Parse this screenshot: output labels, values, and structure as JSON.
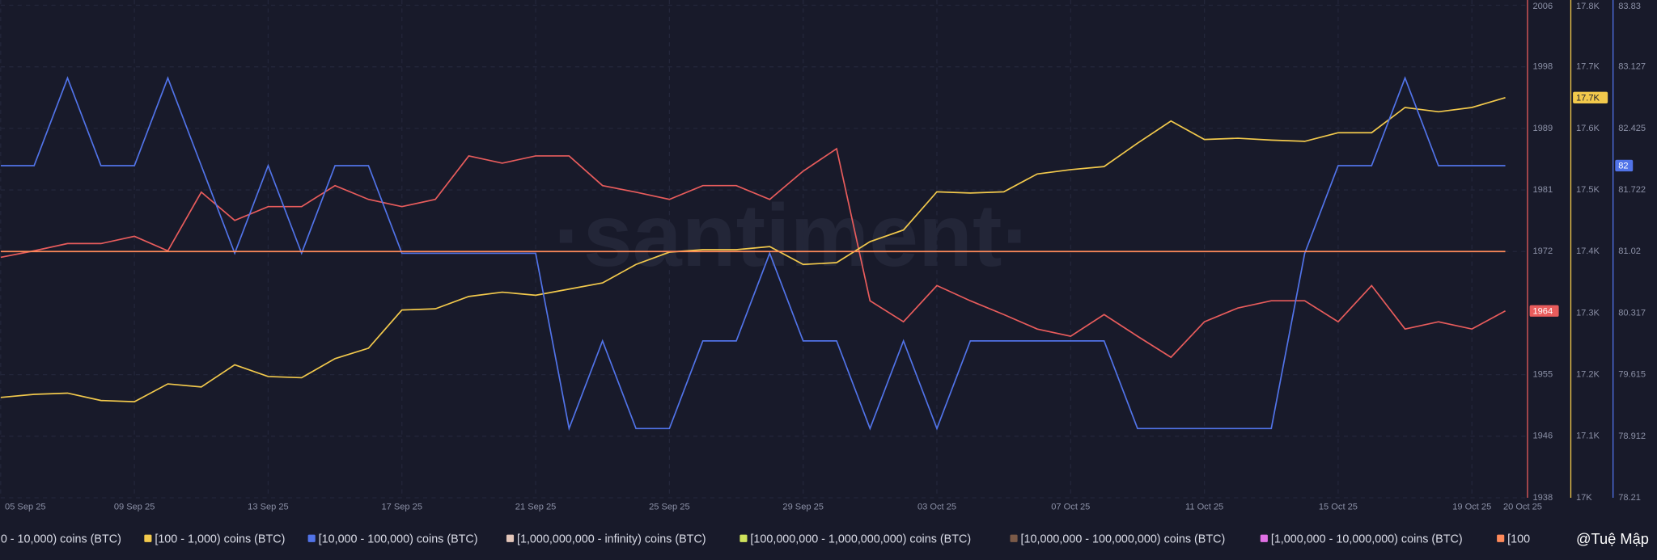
{
  "chart_data": {
    "type": "line",
    "watermark": "·santiment·",
    "credit": "@Tuệ Mập",
    "categories": [
      "05 Sep 25",
      null,
      null,
      null,
      "09 Sep 25",
      null,
      null,
      null,
      "13 Sep 25",
      null,
      null,
      null,
      "17 Sep 25",
      null,
      null,
      null,
      "21 Sep 25",
      null,
      null,
      null,
      "25 Sep 25",
      null,
      null,
      null,
      "29 Sep 25",
      null,
      null,
      null,
      "03 Oct 25",
      null,
      null,
      null,
      "07 Oct 25",
      null,
      null,
      null,
      "11 Oct 25",
      null,
      null,
      null,
      "15 Oct 25",
      null,
      null,
      null,
      "19 Oct 25",
      "20 Oct 25"
    ],
    "ylim": [
      1938,
      2006
    ],
    "yticks": [
      1938,
      {
        "value": 1946.5,
        "label": "1946"
      },
      1955,
      1972,
      {
        "value": 1980.5,
        "label": "1981"
      },
      1989,
      {
        "value": 1997.5,
        "label": "1998"
      },
      2006
    ],
    "y2lim": [
      17000,
      17800
    ],
    "y2ticks": [
      {
        "value": 17000,
        "label": "17K"
      },
      {
        "value": 17100,
        "label": "17.1K"
      },
      {
        "value": 17200,
        "label": "17.2K"
      },
      {
        "value": 17300,
        "label": "17.3K"
      },
      {
        "value": 17400,
        "label": "17.4K"
      },
      {
        "value": 17500,
        "label": "17.5K"
      },
      {
        "value": 17600,
        "label": "17.6K"
      },
      {
        "value": 17700,
        "label": "17.7K"
      },
      {
        "value": 17800,
        "label": "17.8K"
      }
    ],
    "y3lim": [
      78.21,
      83.83
    ],
    "y3ticks": [
      78.21,
      78.912,
      79.615,
      80.317,
      81.02,
      81.722,
      82.425,
      83.127,
      83.83
    ],
    "grid": true,
    "series": [
      {
        "name": "0 - 10,000) coins (BTC)",
        "color": "#e85c5c",
        "axis": "y",
        "values": [
          1971.2,
          1972.1,
          1973.1,
          1973.1,
          1974.1,
          1972.1,
          1980.2,
          1976.3,
          1978.2,
          1978.2,
          1981.1,
          1979.2,
          1978.2,
          1979.2,
          1985.2,
          1984.2,
          1985.2,
          1985.2,
          1981.1,
          1980.2,
          1979.2,
          1981.1,
          1981.1,
          1979.2,
          1983.1,
          1986.2,
          1965.2,
          1962.3,
          1967.3,
          1965.2,
          1963.3,
          1961.3,
          1960.3,
          1963.3,
          1960.3,
          1957.4,
          1962.3,
          1964.2,
          1965.2,
          1965.2,
          1962.3,
          1967.3,
          1961.3,
          1962.3,
          1961.3,
          1963.8
        ],
        "value_labels": [
          null,
          null,
          null,
          null,
          null,
          null,
          null,
          null,
          null,
          null,
          null,
          null,
          null,
          null,
          null,
          null,
          null,
          null,
          null,
          null,
          null,
          null,
          null,
          null,
          null,
          null,
          null,
          null,
          null,
          null,
          null,
          null,
          null,
          null,
          null,
          null,
          null,
          null,
          null,
          null,
          null,
          null,
          null,
          null,
          null,
          "1964"
        ]
      },
      {
        "name": "[100 - 1,000) coins (BTC)",
        "color": "#f2c94c",
        "axis": "y2",
        "values": [
          17163,
          17168,
          17170,
          17158,
          17156,
          17185,
          17180,
          17216,
          17197,
          17195,
          17226,
          17243,
          17305,
          17307,
          17327,
          17334,
          17329,
          17339,
          17349,
          17379,
          17399,
          17403,
          17403,
          17408,
          17379,
          17382,
          17416,
          17435,
          17497,
          17495,
          17497,
          17526,
          17533,
          17538,
          17576,
          17612,
          17582,
          17584,
          17581,
          17579,
          17593,
          17593,
          17634,
          17627,
          17634,
          17650
        ],
        "value_labels": [
          null,
          null,
          null,
          null,
          null,
          null,
          null,
          null,
          null,
          null,
          null,
          null,
          null,
          null,
          null,
          null,
          null,
          null,
          null,
          null,
          null,
          null,
          null,
          null,
          null,
          null,
          null,
          null,
          null,
          null,
          null,
          null,
          null,
          null,
          null,
          null,
          null,
          null,
          null,
          null,
          null,
          null,
          null,
          null,
          null,
          "17.7K"
        ]
      },
      {
        "name": "[10,000 - 100,000) coins (BTC)",
        "color": "#5173e8",
        "axis": "y3",
        "values": [
          82,
          82,
          83,
          82,
          82,
          83,
          82,
          81,
          82,
          81,
          82,
          82,
          81,
          81,
          81,
          81,
          81,
          79,
          80,
          79,
          79,
          80,
          80,
          81,
          80,
          80,
          79,
          80,
          79,
          80,
          80,
          80,
          80,
          80,
          79,
          79,
          79,
          79,
          79,
          81,
          82,
          82,
          83,
          82,
          82,
          82
        ],
        "value_labels": [
          null,
          null,
          null,
          null,
          null,
          null,
          null,
          null,
          null,
          null,
          null,
          null,
          null,
          null,
          null,
          null,
          null,
          null,
          null,
          null,
          null,
          null,
          null,
          null,
          null,
          null,
          null,
          null,
          null,
          null,
          null,
          null,
          null,
          null,
          null,
          null,
          null,
          null,
          null,
          null,
          null,
          null,
          null,
          null,
          null,
          "82"
        ]
      },
      {
        "name": "[1,000,000,000 - infinity) coins (BTC)",
        "color": "#e3c6ba"
      },
      {
        "name": "[100,000,000 - 1,000,000,000) coins (BTC)",
        "color": "#cfe25c"
      },
      {
        "name": "[10,000,000 - 100,000,000) coins (BTC)",
        "color": "#7b5a48"
      },
      {
        "name": "[1,000,000 - 10,000,000) coins (BTC)",
        "color": "#e070e4"
      },
      {
        "name": "[100",
        "color": "#ff8a5a",
        "axis": "y",
        "values": [
          1972,
          1972,
          1972,
          1972,
          1972,
          1972,
          1972,
          1972,
          1972,
          1972,
          1972,
          1972,
          1972,
          1972,
          1972,
          1972,
          1972,
          1972,
          1972,
          1972,
          1972,
          1972,
          1972,
          1972,
          1972,
          1972,
          1972,
          1972,
          1972,
          1972,
          1972,
          1972,
          1972,
          1972,
          1972,
          1972,
          1972,
          1972,
          1972,
          1972,
          1972,
          1972,
          1972,
          1972,
          1972,
          1972
        ]
      }
    ]
  }
}
